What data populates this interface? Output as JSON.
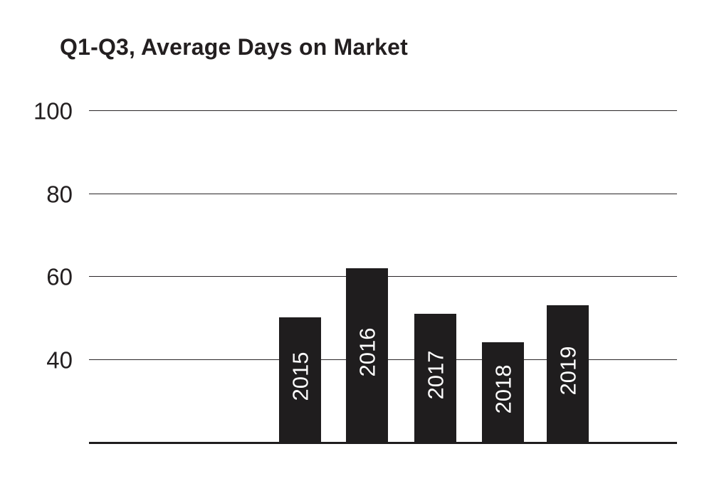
{
  "chart_data": {
    "type": "bar",
    "title": "Q1-Q3, Average Days on Market",
    "categories": [
      "2015",
      "2016",
      "2017",
      "2018",
      "2019"
    ],
    "values": [
      50,
      62,
      51,
      44,
      53
    ],
    "xlabel": "",
    "ylabel": "",
    "y_ticks": [
      40,
      60,
      80,
      100
    ],
    "y_axis_start": 20,
    "ylim": [
      20,
      107
    ],
    "grid": "horizontal-only",
    "legend_position": "none",
    "bar_label_placement": "inside-bar-rotated-90",
    "colors": {
      "background": "#ffffff",
      "bar": "#1f1d1e",
      "bar_label": "#ffffff",
      "title": "#231f20",
      "tick_label": "#231f20",
      "gridline": "#2a2628",
      "axis_line": "#1f1d1e"
    }
  }
}
